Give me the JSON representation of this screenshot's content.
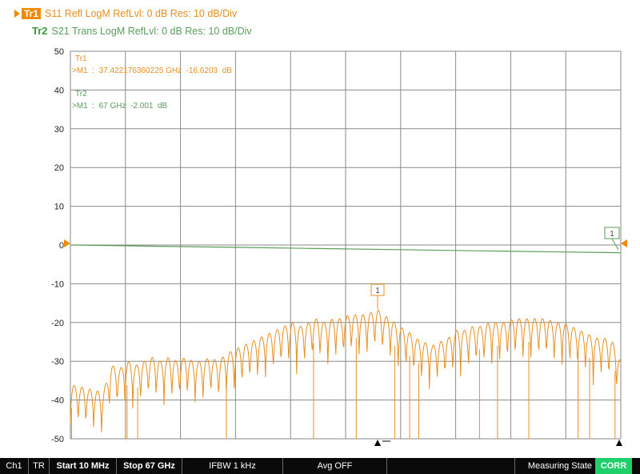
{
  "traces": [
    {
      "badge": "Tr1",
      "description": "S11 Refl LogM RefLvl: 0  dB Res: 10  dB/Div",
      "color": "#e89020",
      "active": true
    },
    {
      "badge": "Tr2",
      "description": "S21 Trans LogM RefLvl: 0  dB Res: 10  dB/Div",
      "color": "#5a9e5a",
      "active": false
    }
  ],
  "markers": [
    {
      "trace_label": "Tr1",
      "readout": ">M1  :  37.422176360225 GHz  -16.6203  dB",
      "color": "#e89020",
      "flag": "1"
    },
    {
      "trace_label": "Tr2",
      "readout": ">M1  :  67 GHz  -2.001  dB",
      "color": "#5a9e5a",
      "flag": "1"
    }
  ],
  "chart_data": {
    "type": "line",
    "y_ticks": [
      "50",
      "40",
      "30",
      "20",
      "10",
      "0",
      "-10",
      "-20",
      "-30",
      "-40",
      "-50"
    ],
    "ylim": [
      -50,
      50
    ],
    "xlim": [
      0.01,
      67
    ],
    "x_unit": "GHz",
    "y_unit": "dB",
    "x_divisions": 10,
    "y_divisions": 10,
    "grid": true,
    "reference_level": 0,
    "series": [
      {
        "name": "Tr1",
        "color": "#e89020",
        "x": [
          0.01,
          2,
          4,
          5,
          6,
          7,
          8,
          9,
          10,
          11,
          12,
          13,
          14,
          15,
          16,
          17,
          18,
          19,
          20,
          21,
          22,
          23,
          24,
          25,
          26,
          27,
          28,
          29,
          30,
          31,
          32,
          33,
          34,
          35,
          36,
          37.42,
          38,
          39,
          40,
          41,
          42,
          43,
          44,
          45,
          46,
          47,
          48,
          49,
          50,
          51,
          52,
          53,
          54,
          55,
          56,
          57,
          58,
          59,
          60,
          61,
          62,
          63,
          64,
          65,
          66,
          67
        ],
        "y": [
          -36,
          -37,
          -38,
          -31,
          -32,
          -30,
          -31,
          -30,
          -29,
          -30,
          -29,
          -30,
          -29,
          -30,
          -30,
          -29,
          -30,
          -28,
          -27,
          -26,
          -25,
          -24,
          -23,
          -22,
          -21,
          -20,
          -21,
          -20,
          -19,
          -20,
          -19,
          -19,
          -18,
          -18,
          -18,
          -16.6,
          -18,
          -19,
          -21,
          -22,
          -24,
          -25,
          -26,
          -25,
          -24,
          -22,
          -22,
          -21,
          -21,
          -20,
          -20,
          -20,
          -19,
          -19,
          -19,
          -19,
          -19,
          -20,
          -20,
          -21,
          -22,
          -23,
          -24,
          -24,
          -25,
          -30
        ]
      },
      {
        "name": "Tr2",
        "color": "#5a9e5a",
        "x": [
          0.01,
          10,
          20,
          30,
          40,
          50,
          60,
          67
        ],
        "y": [
          0,
          -0.3,
          -0.6,
          -0.9,
          -1.2,
          -1.5,
          -1.8,
          -2.001
        ]
      }
    ]
  },
  "status_bar": [
    {
      "text": "Ch1",
      "bold": false
    },
    {
      "text": "TR",
      "bold": false
    },
    {
      "text": "Start 10 MHz",
      "bold": true
    },
    {
      "text": "Stop 67 GHz",
      "bold": true
    },
    {
      "text": "IFBW 1 kHz",
      "bold": false
    },
    {
      "text": "Avg OFF",
      "bold": false
    },
    {
      "text": "",
      "bold": false
    },
    {
      "text": "Measuring State",
      "bold": false
    },
    {
      "text": "CORR",
      "bold": true
    }
  ],
  "colors": {
    "tr1": "#e89020",
    "tr2": "#5a9e5a",
    "grid": "#8a8a8a",
    "status_bg": "#0a0a0a",
    "corr": "#1fd06a"
  }
}
